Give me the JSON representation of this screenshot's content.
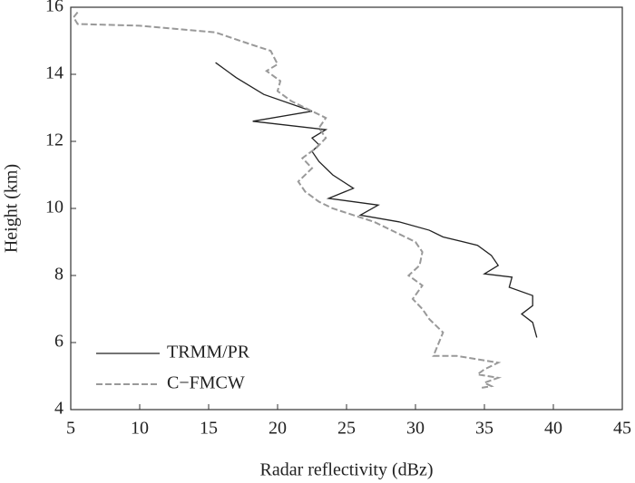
{
  "chart_data": {
    "type": "line",
    "x_label": "Radar reflectivity (dBz)",
    "y_label": "Height (km)",
    "xlim": [
      5,
      45
    ],
    "xticks": [
      5,
      10,
      15,
      20,
      25,
      30,
      35,
      40,
      45
    ],
    "ylim": [
      4,
      16
    ],
    "yticks": [
      4,
      6,
      8,
      10,
      12,
      14,
      16
    ],
    "grid": false,
    "legend": "lower left",
    "series": [
      {
        "name": "TRMM/PR",
        "color": "#222222",
        "dashed": false,
        "x": [
          15.5,
          17,
          19,
          22.5,
          18.2,
          23.5,
          22.5,
          23,
          22.5,
          23,
          24,
          25.5,
          23.7,
          27.3,
          26,
          28.8,
          31,
          32,
          34.5,
          35.5,
          36,
          35,
          37,
          36.8,
          38.5,
          38.5,
          37.7,
          38.5,
          38.8
        ],
        "y": [
          14.35,
          13.9,
          13.4,
          12.9,
          12.6,
          12.35,
          12.1,
          11.9,
          11.7,
          11.4,
          11,
          10.6,
          10.3,
          10.1,
          9.8,
          9.6,
          9.35,
          9.15,
          8.9,
          8.6,
          8.3,
          8.05,
          7.95,
          7.65,
          7.4,
          7.1,
          6.85,
          6.6,
          6.15
        ]
      },
      {
        "name": "C−FMCW",
        "color": "#999999",
        "dashed": true,
        "x": [
          5.5,
          5.2,
          5.5,
          10,
          15.5,
          18,
          19.5,
          20,
          19.2,
          20.2,
          20,
          21,
          22,
          23.5,
          23,
          23.5,
          22.8,
          21.8,
          22.5,
          21.5,
          22,
          23,
          24,
          25.5,
          27,
          28.5,
          30,
          30.5,
          30.3,
          29.5,
          30.5,
          29.8,
          30.5,
          31,
          32,
          31.5,
          31.3,
          33,
          36,
          35,
          34.5,
          36,
          35,
          35.5,
          34.8
        ],
        "y": [
          15.85,
          15.7,
          15.5,
          15.45,
          15.25,
          14.9,
          14.7,
          14.3,
          14.1,
          13.8,
          13.5,
          13.2,
          13,
          12.7,
          12.4,
          12.1,
          11.8,
          11.5,
          11.2,
          10.8,
          10.5,
          10.2,
          10,
          9.8,
          9.6,
          9.3,
          9,
          8.7,
          8.3,
          8,
          7.7,
          7.3,
          7,
          6.7,
          6.3,
          5.8,
          5.6,
          5.6,
          5.4,
          5.2,
          5.05,
          4.95,
          4.8,
          4.7,
          4.65
        ]
      }
    ]
  }
}
